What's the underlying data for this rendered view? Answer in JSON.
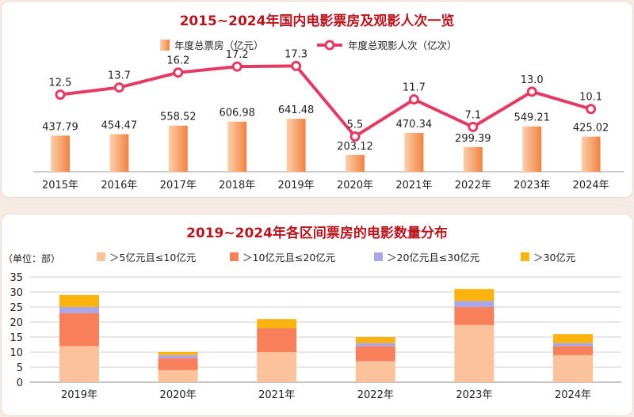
{
  "colors": {
    "bar_light": "#fbc9a3",
    "bar_dark": "#f2894a",
    "line": "#e43a63",
    "seg1": "#fbc29c",
    "seg2": "#f7805a",
    "seg3": "#a8a7ee",
    "seg4": "#fbb40e",
    "title": "#b8161e",
    "grid": "#c9c9c9"
  },
  "chart_data": [
    {
      "type": "bar+line",
      "title": "2015~2024年国内电影票房及观影人次一览",
      "categories": [
        "2015年",
        "2016年",
        "2017年",
        "2018年",
        "2019年",
        "2020年",
        "2021年",
        "2022年",
        "2023年",
        "2024年"
      ],
      "series": [
        {
          "name": "年度总票房（亿元）",
          "kind": "bar",
          "values": [
            437.79,
            454.47,
            558.52,
            606.98,
            641.48,
            203.12,
            470.34,
            299.39,
            549.21,
            425.02
          ],
          "labels": [
            "437.79",
            "454.47",
            "558.52",
            "606.98",
            "641.48",
            "203.12",
            "470.34",
            "299.39",
            "549.21",
            "425.02"
          ]
        },
        {
          "name": "年度总观影人次（亿次）",
          "kind": "line",
          "values": [
            12.5,
            13.7,
            16.2,
            17.2,
            17.3,
            5.5,
            11.7,
            7.1,
            13.0,
            10.1
          ],
          "labels": [
            "12.5",
            "13.7",
            "16.2",
            "17.2",
            "17.3",
            "5.5",
            "11.7",
            "7.1",
            "13.0",
            "10.1"
          ]
        }
      ]
    },
    {
      "type": "stacked-bar",
      "title": "2019~2024年各区间票房的电影数量分布",
      "unit_label": "（单位：部）",
      "categories": [
        "2019年",
        "2020年",
        "2021年",
        "2022年",
        "2023年",
        "2024年"
      ],
      "ylim": [
        0,
        35
      ],
      "yticks": [
        "0",
        "5",
        "10",
        "15",
        "20",
        "25",
        "30",
        "35"
      ],
      "grid": true,
      "series": [
        {
          "name": "＞5亿元且≤10亿元",
          "values": [
            12,
            4,
            10,
            7,
            19,
            9
          ]
        },
        {
          "name": "＞10亿元且≤20亿元",
          "values": [
            11,
            4,
            8,
            5,
            6,
            3
          ]
        },
        {
          "name": "＞20亿元且≤30亿元",
          "values": [
            2,
            1,
            0,
            1,
            2,
            1
          ]
        },
        {
          "name": "＞30亿元",
          "values": [
            4,
            1,
            3,
            2,
            4,
            3
          ]
        }
      ]
    }
  ]
}
